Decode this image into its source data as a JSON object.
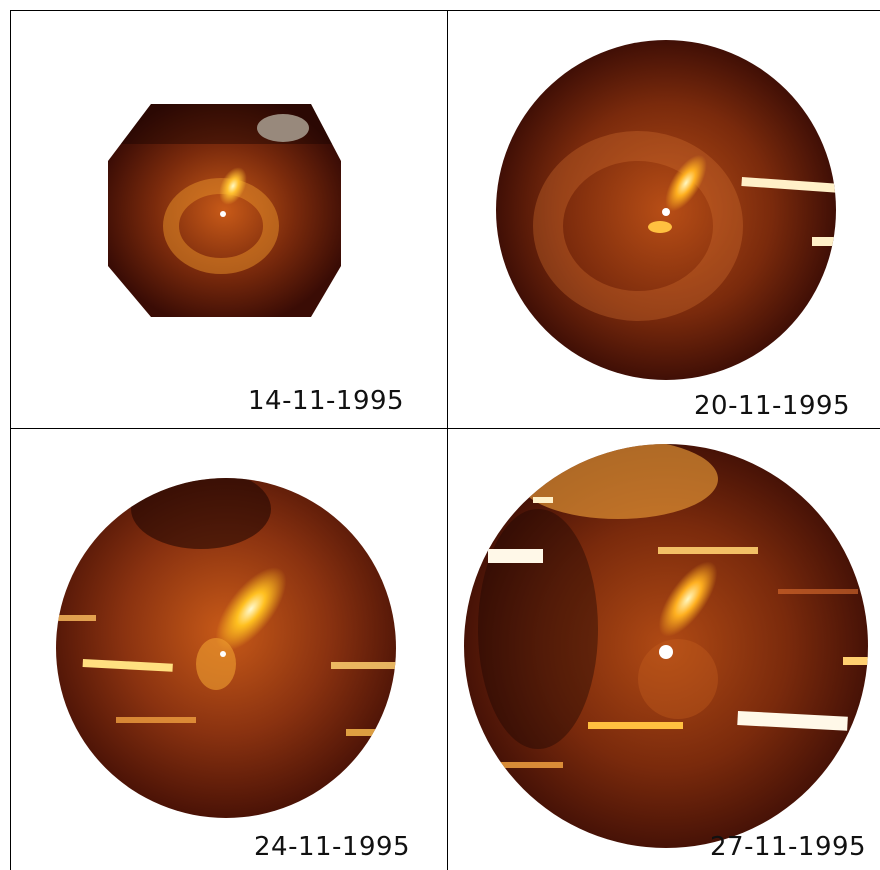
{
  "panels": [
    {
      "date": "14-11-1995"
    },
    {
      "date": "20-11-1995"
    },
    {
      "date": "24-11-1995"
    },
    {
      "date": "27-11-1995"
    }
  ],
  "colors": {
    "background": "#ffffff",
    "dark": "#2a0804",
    "mid": "#8a2f10",
    "bright": "#d86818",
    "core": "#ffe060"
  }
}
